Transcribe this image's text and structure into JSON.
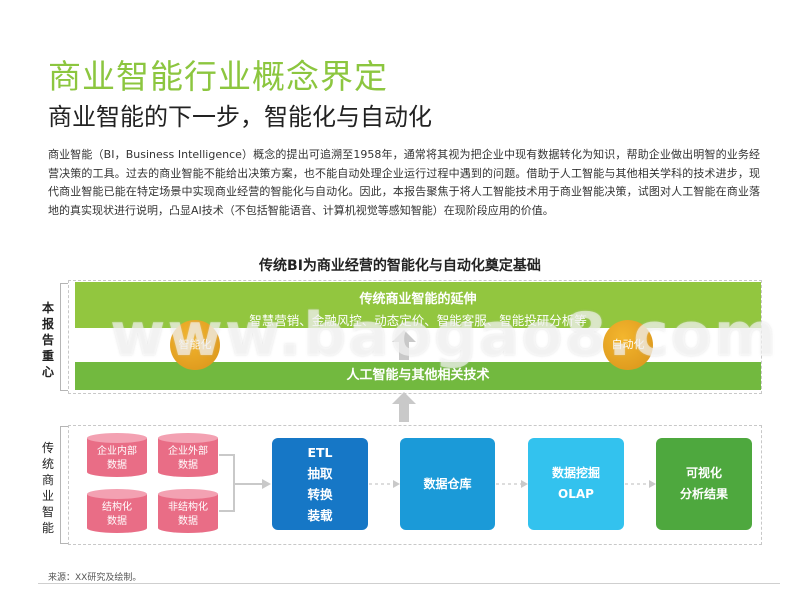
{
  "title": "商业智能行业概念界定",
  "subtitle": "商业智能的下一步，智能化与自动化",
  "paragraph": "商业智能（BI，Business Intelligence）概念的提出可追溯至1958年，通常将其视为把企业中现有数据转化为知识，帮助企业做出明智的业务经营决策的工具。过去的商业智能不能给出决策方案，也不能自动处理企业运行过程中遇到的问题。借助于人工智能与其他相关学科的技术进步，现代商业智能已能在特定场景中实现商业经营的智能化与自动化。因此，本报告聚焦于将人工智能技术用于商业智能决策，试图对人工智能在商业落地的真实现状进行说明，凸显AI技术（不包括智能语音、计算机视觉等感知智能）在现阶段应用的价值。",
  "diagram": {
    "title": "传统BI为商业经营的智能化与自动化奠定基础",
    "side_top": "本报告重心",
    "side_bottom": "传统商业智能",
    "band_top_title": "传统商业智能的延伸",
    "band_top_items": "智慧营销、金融风控、动态定价、智能客服、智能投研分析等",
    "band_bottom": "人工智能与其他相关技术",
    "circle_left": "智能化",
    "circle_right": "自动化",
    "sources": [
      {
        "line1": "企业内部",
        "line2": "数据"
      },
      {
        "line1": "企业外部",
        "line2": "数据"
      },
      {
        "line1": "结构化",
        "line2": "数据"
      },
      {
        "line1": "非结构化",
        "line2": "数据"
      }
    ],
    "etl": {
      "l1": "ETL",
      "l2": "抽取",
      "l3": "转换",
      "l4": "装载"
    },
    "warehouse": "数据仓库",
    "mining": {
      "l1": "数据挖掘",
      "l2": "OLAP"
    },
    "visual": {
      "l1": "可视化",
      "l2": "分析结果"
    }
  },
  "watermark": "www.baogao8.com",
  "source_note": "来源：XX研究及绘制。",
  "colors": {
    "title_green": "#8cc63f",
    "band_green": "#92c63f",
    "band_green_dark": "#72b93f",
    "circle_orange": "#e8a321",
    "cylinder_pink": "#e96d86",
    "etl_blue": "#1677c6",
    "dw_blue": "#1b9ad8",
    "dm_blue": "#33c2ee",
    "vis_green": "#4ea83e"
  }
}
